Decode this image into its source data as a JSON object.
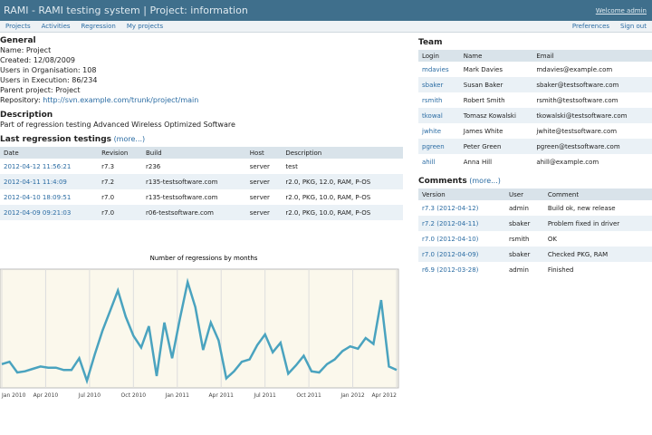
{
  "header": {
    "title": "RAMI - RAMI testing system | Project: information",
    "user": "Welcome admin"
  },
  "nav": {
    "left": [
      "Projects",
      "Activities",
      "Regression",
      "My projects"
    ],
    "right": [
      "Preferences",
      "Sign out"
    ]
  },
  "general": {
    "heading": "General",
    "lines": [
      "Name: Project",
      "Created: 12/08/2009",
      "Users in Organisation: 108",
      "Users in Execution: 86/234",
      "Parent project: Project"
    ],
    "repo_label": "Repository:",
    "repo_link": "http://svn.example.com/trunk/project/main"
  },
  "description": {
    "heading": "Description",
    "text": "Part of regression testing Advanced Wireless Optimized Software"
  },
  "regression": {
    "heading": "Last regression testings",
    "more": "(more...)",
    "columns": [
      "Date",
      "Revision",
      "Build",
      "Host",
      "Description"
    ],
    "rows": [
      [
        "2012-04-12 11:56:21",
        "r7.3",
        "r236",
        "server",
        "test"
      ],
      [
        "2012-04-11 11:4:09",
        "r7.2",
        "r135-testsoftware.com",
        "server",
        "r2.0, PKG, 12.0, RAM, P-OS"
      ],
      [
        "2012-04-10 18:09:51",
        "r7.0",
        "r135-testsoftware.com",
        "server",
        "r2.0, PKG, 10.0, RAM, P-OS"
      ],
      [
        "2012-04-09 09:21:03",
        "r7.0",
        "r06-testsoftware.com",
        "server",
        "r2.0, PKG, 10.0, RAM, P-OS"
      ]
    ]
  },
  "chart": {
    "type": "line",
    "title": "Number of regressions by months",
    "color": "#4aa3bf",
    "ylim": [
      0,
      10
    ],
    "values": [
      2.0,
      2.2,
      1.3,
      1.4,
      1.6,
      1.8,
      1.7,
      1.7,
      1.5,
      1.5,
      2.5,
      0.6,
      2.8,
      4.8,
      6.5,
      8.2,
      6.0,
      4.4,
      3.4,
      5.2,
      1.0,
      5.5,
      2.5,
      5.8,
      8.9,
      6.8,
      3.2,
      5.5,
      4.0,
      0.8,
      1.4,
      2.2,
      2.4,
      3.6,
      4.5,
      3.0,
      3.8,
      1.2,
      1.9,
      2.7,
      1.4,
      1.3,
      2.0,
      2.4,
      3.1,
      3.5,
      3.3,
      4.2,
      3.7,
      7.4,
      1.8,
      1.5
    ],
    "xticks": [
      "Jan 2010",
      "Apr 2010",
      "Jul 2010",
      "Oct 2010",
      "Jan 2011",
      "Apr 2011",
      "Jul 2011",
      "Oct 2011",
      "Jan 2012",
      "Apr 2012"
    ]
  },
  "team": {
    "heading": "Team",
    "columns": [
      "Login",
      "Name",
      "Email"
    ],
    "rows": [
      [
        "mdavies",
        "Mark Davies",
        "mdavies@example.com"
      ],
      [
        "sbaker",
        "Susan Baker",
        "sbaker@testsoftware.com"
      ],
      [
        "rsmith",
        "Robert Smith",
        "rsmith@testsoftware.com"
      ],
      [
        "tkowal",
        "Tomasz Kowalski",
        "tkowalski@testsoftware.com"
      ],
      [
        "jwhite",
        "James White",
        "jwhite@testsoftware.com"
      ],
      [
        "pgreen",
        "Peter Green",
        "pgreen@testsoftware.com"
      ],
      [
        "ahill",
        "Anna Hill",
        "ahill@example.com"
      ]
    ]
  },
  "comments": {
    "heading": "Comments",
    "more": "(more...)",
    "columns": [
      "Version",
      "User",
      "Comment"
    ],
    "rows": [
      [
        "r7.3 (2012-04-12)",
        "admin",
        "Build ok, new release"
      ],
      [
        "r7.2 (2012-04-11)",
        "sbaker",
        "Problem fixed in driver"
      ],
      [
        "r7.0 (2012-04-10)",
        "rsmith",
        "OK"
      ],
      [
        "r7.0 (2012-04-09)",
        "sbaker",
        "Checked PKG, RAM"
      ],
      [
        "r6.9 (2012-03-28)",
        "admin",
        "Finished"
      ]
    ]
  }
}
